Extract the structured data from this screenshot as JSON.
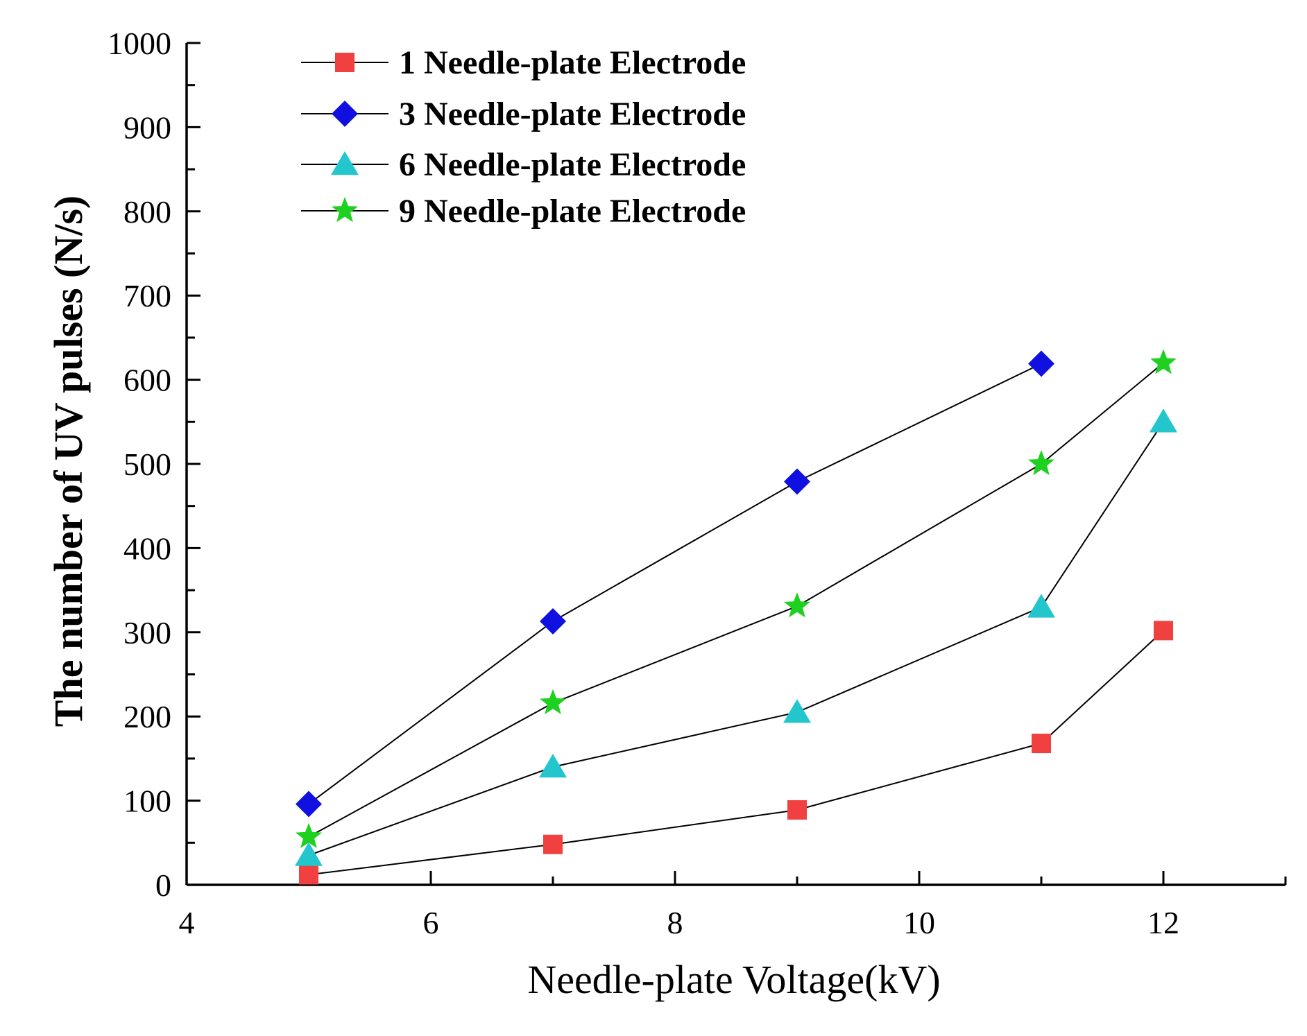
{
  "chart_data": {
    "type": "line",
    "title": "",
    "xlabel": "Needle-plate Voltage(kV)",
    "ylabel": "The number of UV pulses (N/s)",
    "xlim": [
      4,
      13
    ],
    "ylim": [
      0,
      1000
    ],
    "x_ticks": [
      4,
      6,
      8,
      10,
      12
    ],
    "x_tick_labels": [
      "4",
      "6",
      "8",
      "10",
      "12"
    ],
    "y_ticks": [
      0,
      100,
      200,
      300,
      400,
      500,
      600,
      700,
      800,
      900,
      1000
    ],
    "y_tick_labels": [
      "0",
      "100",
      "200",
      "300",
      "400",
      "500",
      "600",
      "700",
      "800",
      "900",
      "1000"
    ],
    "grid": false,
    "legend_position": "top-left",
    "series": [
      {
        "name": "1 Needle-plate Electrode",
        "marker": "square",
        "color": "#f04040",
        "x": [
          5,
          7,
          9,
          11,
          12
        ],
        "values": [
          12,
          48,
          89,
          168,
          302
        ]
      },
      {
        "name": "3 Needle-plate Electrode",
        "marker": "diamond",
        "color": "#1010e0",
        "x": [
          5,
          7,
          9,
          11
        ],
        "values": [
          96,
          313,
          479,
          619
        ]
      },
      {
        "name": "6 Needle-plate Electrode",
        "marker": "triangle",
        "color": "#22c6cc",
        "x": [
          5,
          7,
          9,
          11,
          12
        ],
        "values": [
          35,
          140,
          205,
          330,
          550
        ]
      },
      {
        "name": "9 Needle-plate Electrode",
        "marker": "star",
        "color": "#1ed020",
        "x": [
          5,
          7,
          9,
          11,
          12
        ],
        "values": [
          57,
          216,
          331,
          500,
          620
        ]
      }
    ]
  }
}
